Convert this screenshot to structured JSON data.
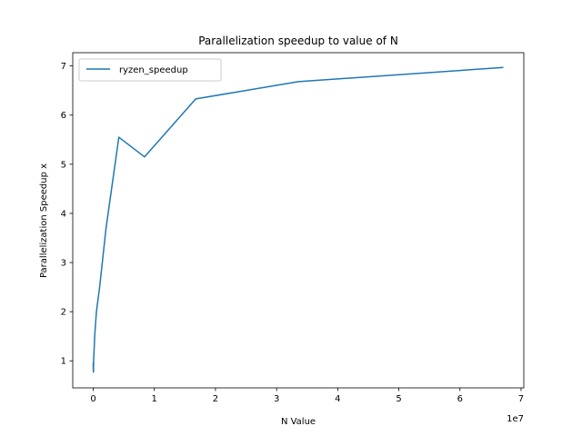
{
  "chart_data": {
    "type": "line",
    "title": "Parallelization speedup to value of N",
    "xlabel": "N Value",
    "ylabel": "Parallelization Speedup x",
    "x_offset_label": "1e7",
    "xlim": [
      -3350000,
      70450000
    ],
    "ylim": [
      0.45,
      7.27
    ],
    "x_ticks": [
      0,
      10000000,
      20000000,
      30000000,
      40000000,
      50000000,
      60000000,
      70000000
    ],
    "x_tick_labels": [
      "0",
      "1",
      "2",
      "3",
      "4",
      "5",
      "6",
      "7"
    ],
    "y_ticks": [
      1,
      2,
      3,
      4,
      5,
      6,
      7
    ],
    "y_tick_labels": [
      "1",
      "2",
      "3",
      "4",
      "5",
      "6",
      "7"
    ],
    "grid": false,
    "legend": {
      "position": "upper-left"
    },
    "series": [
      {
        "name": "ryzen_speedup",
        "color": "#1f77b4",
        "x": [
          1024,
          2048,
          4096,
          8192,
          16384,
          32768,
          65536,
          131072,
          262144,
          524288,
          1048576,
          2097152,
          4194304,
          8388608,
          16777216,
          33554432,
          67108864
        ],
        "y": [
          0.97,
          0.92,
          0.88,
          0.86,
          0.83,
          0.77,
          0.99,
          1.2,
          1.55,
          2.0,
          2.5,
          3.7,
          5.55,
          5.15,
          6.33,
          6.68,
          6.97
        ]
      }
    ]
  }
}
